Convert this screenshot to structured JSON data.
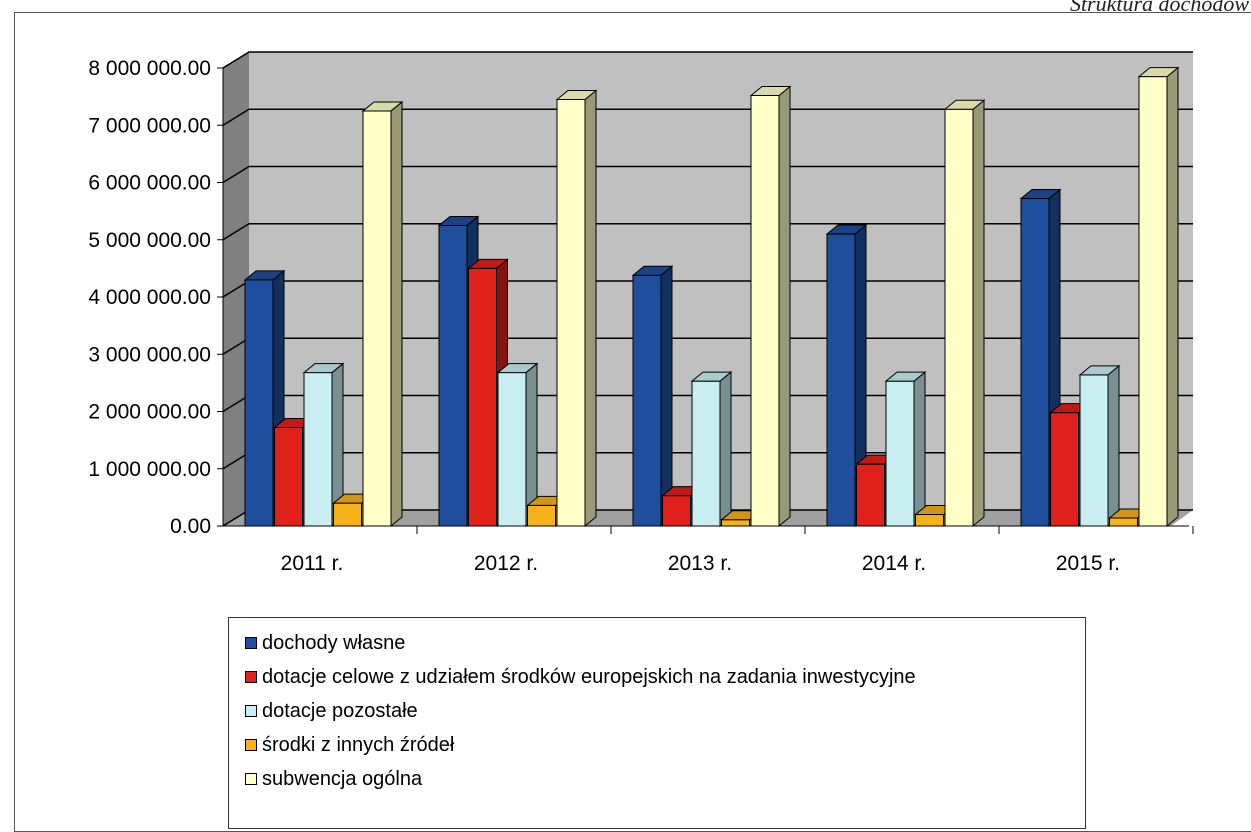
{
  "header": {
    "caption": "Struktura dochodów"
  },
  "chart_data": {
    "type": "bar",
    "categories": [
      "2011 r.",
      "2012 r.",
      "2013 r.",
      "2014 r.",
      "2015 r."
    ],
    "ylim": [
      0,
      8000000
    ],
    "yticks": [
      {
        "value": 0,
        "label": "0.00"
      },
      {
        "value": 1000000,
        "label": "1 000 000.00"
      },
      {
        "value": 2000000,
        "label": "2 000 000.00"
      },
      {
        "value": 3000000,
        "label": "3 000 000.00"
      },
      {
        "value": 4000000,
        "label": "4 000 000.00"
      },
      {
        "value": 5000000,
        "label": "5 000 000.00"
      },
      {
        "value": 6000000,
        "label": "6 000 000.00"
      },
      {
        "value": 7000000,
        "label": "7 000 000.00"
      },
      {
        "value": 8000000,
        "label": "8 000 000.00"
      }
    ],
    "grid": true,
    "legend_position": "bottom",
    "series": [
      {
        "name": "dochody własne",
        "color": "#1f4e9c",
        "values": [
          4300000,
          5250000,
          4380000,
          5100000,
          5720000
        ]
      },
      {
        "name": "dotacje celowe z udziałem środków europejskich na zadania inwestycyjne",
        "color": "#e0201b",
        "values": [
          1720000,
          4500000,
          530000,
          1080000,
          1980000
        ]
      },
      {
        "name": "dotacje pozostałe",
        "color": "#c9eef2",
        "values": [
          2680000,
          2680000,
          2530000,
          2530000,
          2640000
        ]
      },
      {
        "name": "środki z innych źródeł",
        "color": "#f5b21a",
        "values": [
          400000,
          360000,
          110000,
          200000,
          140000
        ]
      },
      {
        "name": "subwencja ogólna",
        "color": "#ffffc8",
        "values": [
          7250000,
          7450000,
          7520000,
          7280000,
          7850000
        ]
      }
    ]
  }
}
